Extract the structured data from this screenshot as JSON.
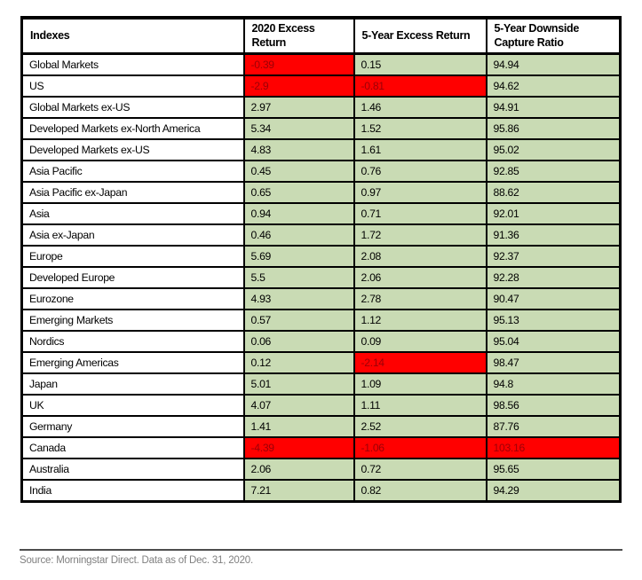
{
  "chart_data": {
    "type": "table",
    "columns": [
      "Indexes",
      "2020 Excess\nReturn",
      "5-Year Excess Return",
      "5-Year Downside\nCapture Ratio"
    ],
    "rows": [
      {
        "index": "Global Markets",
        "values": [
          "-0.39",
          "0.15",
          "94.94"
        ],
        "states": [
          "negative",
          "positive",
          "positive"
        ]
      },
      {
        "index": "US",
        "values": [
          "-2.9",
          "-0.81",
          "94.62"
        ],
        "states": [
          "negative",
          "negative",
          "positive"
        ]
      },
      {
        "index": "Global Markets ex-US",
        "values": [
          "2.97",
          "1.46",
          "94.91"
        ],
        "states": [
          "positive",
          "positive",
          "positive"
        ]
      },
      {
        "index": "Developed Markets ex-North America",
        "values": [
          "5.34",
          "1.52",
          "95.86"
        ],
        "states": [
          "positive",
          "positive",
          "positive"
        ]
      },
      {
        "index": "Developed Markets ex-US",
        "values": [
          "4.83",
          "1.61",
          "95.02"
        ],
        "states": [
          "positive",
          "positive",
          "positive"
        ]
      },
      {
        "index": "Asia Pacific",
        "values": [
          "0.45",
          "0.76",
          "92.85"
        ],
        "states": [
          "positive",
          "positive",
          "positive"
        ]
      },
      {
        "index": "Asia Pacific ex-Japan",
        "values": [
          "0.65",
          "0.97",
          "88.62"
        ],
        "states": [
          "positive",
          "positive",
          "positive"
        ]
      },
      {
        "index": "Asia",
        "values": [
          "0.94",
          "0.71",
          "92.01"
        ],
        "states": [
          "positive",
          "positive",
          "positive"
        ]
      },
      {
        "index": "Asia ex-Japan",
        "values": [
          "0.46",
          "1.72",
          "91.36"
        ],
        "states": [
          "positive",
          "positive",
          "positive"
        ]
      },
      {
        "index": "Europe",
        "values": [
          "5.69",
          "2.08",
          "92.37"
        ],
        "states": [
          "positive",
          "positive",
          "positive"
        ]
      },
      {
        "index": "Developed Europe",
        "values": [
          "5.5",
          "2.06",
          "92.28"
        ],
        "states": [
          "positive",
          "positive",
          "positive"
        ]
      },
      {
        "index": "Eurozone",
        "values": [
          "4.93",
          "2.78",
          "90.47"
        ],
        "states": [
          "positive",
          "positive",
          "positive"
        ]
      },
      {
        "index": "Emerging Markets",
        "values": [
          "0.57",
          "1.12",
          "95.13"
        ],
        "states": [
          "positive",
          "positive",
          "positive"
        ]
      },
      {
        "index": "Nordics",
        "values": [
          "0.06",
          "0.09",
          "95.04"
        ],
        "states": [
          "positive",
          "positive",
          "positive"
        ]
      },
      {
        "index": "Emerging Americas",
        "values": [
          "0.12",
          "-2.14",
          "98.47"
        ],
        "states": [
          "positive",
          "negative",
          "positive"
        ]
      },
      {
        "index": "Japan",
        "values": [
          "5.01",
          "1.09",
          "94.8"
        ],
        "states": [
          "positive",
          "positive",
          "positive"
        ]
      },
      {
        "index": "UK",
        "values": [
          "4.07",
          "1.11",
          "98.56"
        ],
        "states": [
          "positive",
          "positive",
          "positive"
        ]
      },
      {
        "index": "Germany",
        "values": [
          "1.41",
          "2.52",
          "87.76"
        ],
        "states": [
          "positive",
          "positive",
          "positive"
        ]
      },
      {
        "index": "Canada",
        "values": [
          "-4.39",
          "-1.06",
          "103.16"
        ],
        "states": [
          "negative",
          "negative",
          "negative"
        ]
      },
      {
        "index": "Australia",
        "values": [
          "2.06",
          "0.72",
          "95.65"
        ],
        "states": [
          "positive",
          "positive",
          "positive"
        ]
      },
      {
        "index": "India",
        "values": [
          "7.21",
          "0.82",
          "94.29"
        ],
        "states": [
          "positive",
          "positive",
          "positive"
        ]
      }
    ]
  },
  "footer": {
    "source_text": "Source: Morningstar Direct. Data as of Dec. 31, 2020."
  },
  "colors": {
    "cell_positive_bg": "#c9dbb4",
    "cell_negative_bg": "#ff0000",
    "negative_text": "#9c0006",
    "border": "#000000",
    "source_text": "#808080"
  }
}
